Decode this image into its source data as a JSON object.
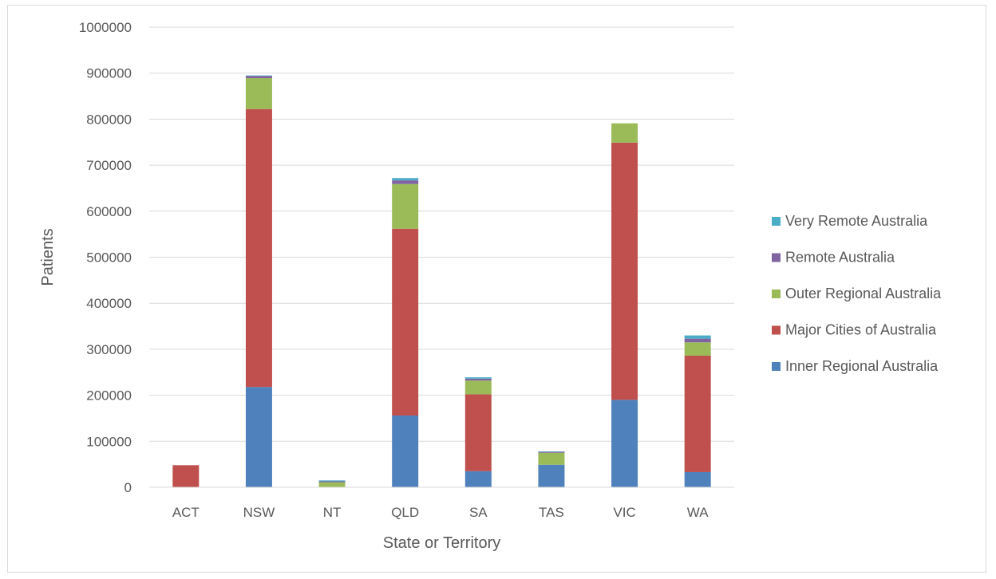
{
  "chart_data": {
    "type": "bar",
    "stacked": true,
    "title": "",
    "xlabel": "State or Territory",
    "ylabel": "Patients",
    "ylim": [
      0,
      1000000
    ],
    "yticks": [
      "0",
      "100000",
      "200000",
      "300000",
      "400000",
      "500000",
      "600000",
      "700000",
      "800000",
      "900000",
      "1000000"
    ],
    "grid": true,
    "legend_position": "right",
    "categories": [
      "ACT",
      "NSW",
      "NT",
      "QLD",
      "SA",
      "TAS",
      "VIC",
      "WA"
    ],
    "series": [
      {
        "name": "Inner Regional Australia",
        "color": "#4f81bd",
        "values": [
          0,
          218000,
          0,
          156000,
          35000,
          49000,
          190000,
          33000
        ]
      },
      {
        "name": "Major Cities of Australia",
        "color": "#c0504d",
        "values": [
          48000,
          604000,
          0,
          406000,
          167000,
          0,
          559000,
          253000
        ]
      },
      {
        "name": "Outer Regional Australia",
        "color": "#9bbb59",
        "values": [
          0,
          67000,
          11000,
          97000,
          30000,
          26000,
          42000,
          29000
        ]
      },
      {
        "name": "Remote Australia",
        "color": "#8064a2",
        "values": [
          0,
          5000,
          2000,
          8000,
          4000,
          2000,
          0,
          8000
        ]
      },
      {
        "name": "Very Remote Australia",
        "color": "#4bacc6",
        "values": [
          0,
          1000,
          2000,
          5000,
          3000,
          1000,
          0,
          7000
        ]
      }
    ]
  }
}
